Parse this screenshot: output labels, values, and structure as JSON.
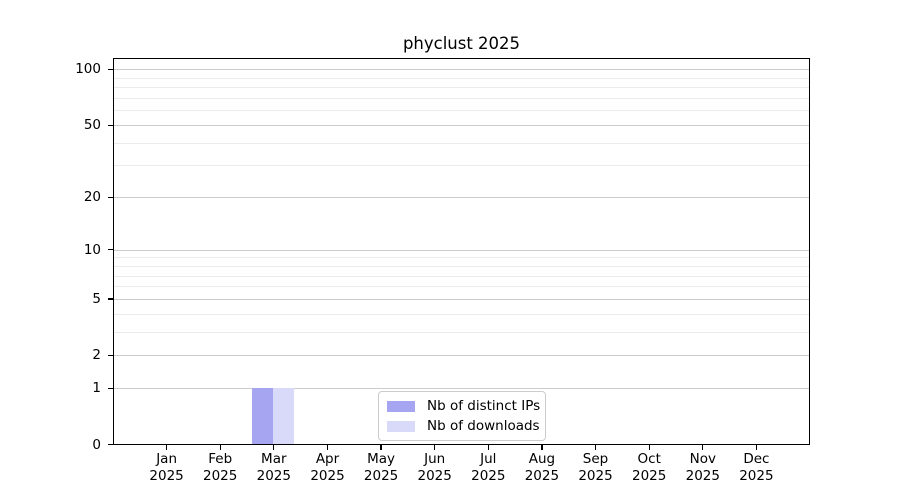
{
  "chart_data": {
    "type": "bar",
    "title": "phyclust 2025",
    "categories": [
      {
        "month": "Jan",
        "year": "2025"
      },
      {
        "month": "Feb",
        "year": "2025"
      },
      {
        "month": "Mar",
        "year": "2025"
      },
      {
        "month": "Apr",
        "year": "2025"
      },
      {
        "month": "May",
        "year": "2025"
      },
      {
        "month": "Jun",
        "year": "2025"
      },
      {
        "month": "Jul",
        "year": "2025"
      },
      {
        "month": "Aug",
        "year": "2025"
      },
      {
        "month": "Sep",
        "year": "2025"
      },
      {
        "month": "Oct",
        "year": "2025"
      },
      {
        "month": "Nov",
        "year": "2025"
      },
      {
        "month": "Dec",
        "year": "2025"
      }
    ],
    "series": [
      {
        "name": "Nb of distinct IPs",
        "color": "#a5a5f2",
        "values": [
          0,
          0,
          1,
          0,
          0,
          0,
          0,
          0,
          0,
          0,
          0,
          0
        ]
      },
      {
        "name": "Nb of downloads",
        "color": "#d9d9f9",
        "values": [
          0,
          0,
          1,
          0,
          0,
          0,
          0,
          0,
          0,
          0,
          0,
          0
        ]
      }
    ],
    "xlabel": "",
    "ylabel": "",
    "yscale": "log1p",
    "ylim": [
      0,
      117
    ],
    "yticks": [
      {
        "value": 0,
        "label": "0"
      },
      {
        "value": 1,
        "label": "1"
      },
      {
        "value": 2,
        "label": "2"
      },
      {
        "value": 5,
        "label": "5"
      },
      {
        "value": 10,
        "label": "10"
      },
      {
        "value": 20,
        "label": "20"
      },
      {
        "value": 50,
        "label": "50"
      },
      {
        "value": 100,
        "label": "100"
      }
    ],
    "minor_yticks": [
      3,
      4,
      6,
      7,
      8,
      9,
      30,
      40,
      60,
      70,
      80,
      90
    ],
    "grid": "horizontal",
    "legend_position": "lower-center-inside",
    "colors": {
      "major_grid": "#cccccc",
      "minor_grid": "#ebebeb",
      "spine": "#000000",
      "legend_border": "#cccccc",
      "background": "#ffffff"
    }
  }
}
